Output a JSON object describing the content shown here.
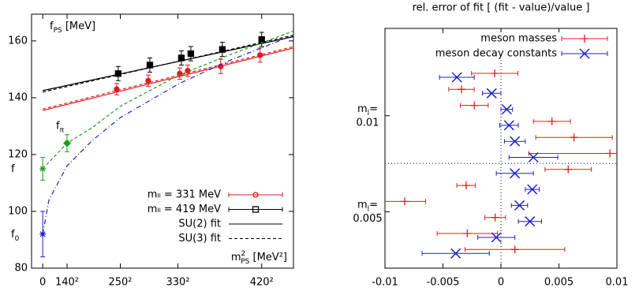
{
  "chart_data": [
    {
      "type": "line",
      "y_label": {
        "text": "f",
        "sub": "PS",
        "unit": " [MeV]"
      },
      "x_label": {
        "text": "m",
        "sup": "2",
        "sub": "PS",
        "unit": " [MeV²]"
      },
      "xlim": [
        -9000,
        202000
      ],
      "ylim": [
        80,
        169.4
      ],
      "xticks": [
        0,
        {
          "value": 19600,
          "label": "140²"
        },
        {
          "value": 62500,
          "label": "250²"
        },
        {
          "value": 108900,
          "label": "330²"
        },
        {
          "value": 176400,
          "label": "420²"
        }
      ],
      "yticks": [
        80,
        100,
        120,
        140,
        160
      ],
      "series": [
        {
          "name": "mₗₗ = 331 MeV",
          "color": "#e8191b",
          "marker": "circle",
          "x": [
            59600,
            85000,
            110400,
            116800,
            143400,
            175100
          ],
          "values": [
            143,
            146,
            148.5,
            149.5,
            151,
            155
          ],
          "errors": [
            2,
            2,
            2,
            2,
            2.5,
            2.5
          ]
        },
        {
          "name": "mₗₗ = 419 MeV",
          "color": "#000000",
          "marker": "square",
          "x": [
            60800,
            86300,
            111700,
            119300,
            144700,
            176400
          ],
          "values": [
            148.5,
            151.5,
            154,
            155.5,
            157,
            160.5
          ],
          "errors": [
            2.5,
            2.5,
            2.5,
            2.5,
            2.5,
            2.5
          ]
        },
        {
          "name": "SU(2) fit",
          "color": "#000000",
          "dash": "none",
          "curves": [
            {
              "color": "#000000",
              "x": [
                0,
                202000
              ],
              "values": [
                142.5,
                161.5
              ]
            },
            {
              "color": "#e8191b",
              "x": [
                0,
                202000
              ],
              "values": [
                135.5,
                157.5
              ]
            }
          ]
        },
        {
          "name": "SU(3) fit",
          "color": "#000000",
          "dash": "4 3",
          "curves": [
            {
              "color": "#000000",
              "x": [
                0,
                202000
              ],
              "values": [
                142,
                162
              ]
            },
            {
              "color": "#e8191b",
              "x": [
                0,
                202000
              ],
              "values": [
                136,
                158
              ]
            },
            {
              "color": "#18a018",
              "x": [
                0,
                19600,
                40000,
                62500,
                110000,
                150000,
                202000
              ],
              "values": [
                115,
                124,
                129.5,
                137,
                148,
                155,
                163.5
              ]
            },
            {
              "color": "#1f1fd0",
              "dash": "6 3 1 3",
              "x": [
                0,
                5000,
                19600,
                40000,
                62500,
                110000,
                150000,
                202000
              ],
              "values": [
                92,
                104,
                116,
                125,
                133,
                145,
                153,
                162
              ]
            }
          ]
        }
      ],
      "extra_points": [
        {
          "color": "#18a018",
          "marker": "star",
          "label": {
            "text": "f"
          },
          "x": [
            0
          ],
          "values": [
            115
          ],
          "errors": [
            4
          ]
        },
        {
          "color": "#18a018",
          "marker": "diamond",
          "label": {
            "text": "f",
            "sub": "π"
          },
          "x": [
            19600
          ],
          "values": [
            124
          ],
          "errors": [
            3
          ]
        },
        {
          "color": "#1f1fd0",
          "marker": "star",
          "label": {
            "text": "f",
            "sub": "0"
          },
          "x": [
            0
          ],
          "values": [
            92
          ],
          "errors": [
            8
          ]
        }
      ]
    },
    {
      "type": "errorbar",
      "title": "rel. error of fit [ (fit - value)/value ]",
      "xlim": [
        -0.01,
        0.01
      ],
      "xticks": [
        -0.01,
        -0.005,
        0,
        0.005,
        0.01
      ],
      "categories": [
        null,
        null,
        null,
        null,
        null,
        null,
        null,
        null,
        null,
        null,
        null,
        null
      ],
      "groups": [
        {
          "text": "m",
          "sub": "l",
          "rest": "=",
          "value": "0.01"
        },
        {
          "text": "m",
          "sub": "l",
          "rest": "=",
          "value": "0.005"
        }
      ],
      "series": [
        {
          "name": "meson masses",
          "color": "#e8191b",
          "marker": "plus",
          "values": [
            -0.00054,
            -0.0034,
            -0.0023,
            0.0044,
            0.0063,
            0.0094,
            0.0058,
            -0.003,
            -0.0083,
            -0.0005,
            -0.0029,
            0.0012
          ],
          "errors": [
            0.002,
            0.0011,
            0.0012,
            0.0016,
            0.0033,
            0.007,
            0.002,
            0.0008,
            0.0018,
            0.0009,
            0.0026,
            0.0043
          ]
        },
        {
          "name": "meson decay constants",
          "color": "#1f1fd0",
          "marker": "cross",
          "values": [
            -0.0038,
            -0.0008,
            0.0005,
            0.0007,
            0.0012,
            0.0028,
            0.0012,
            0.0027,
            0.0016,
            0.0025,
            -0.0004,
            -0.0039
          ],
          "errors": [
            0.0015,
            0.0008,
            0.0005,
            0.0008,
            0.0009,
            0.0021,
            0.0016,
            0.0006,
            0.0007,
            0.001,
            0.0016,
            0.0029
          ]
        }
      ]
    }
  ]
}
